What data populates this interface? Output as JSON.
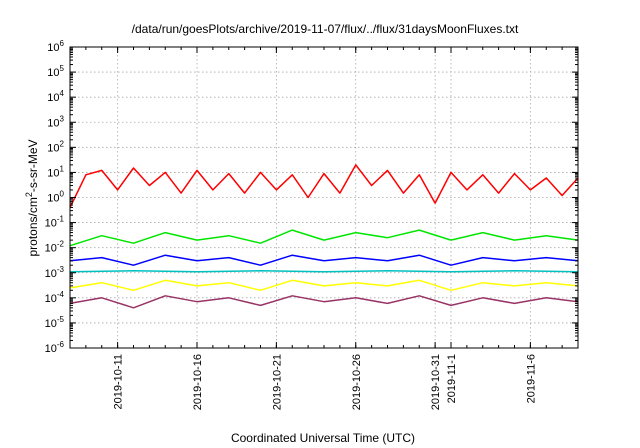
{
  "chart_data": {
    "type": "line",
    "title": "/data/run/goesPlots/archive/2019-11-07/flux/../flux/31daysMoonFluxes.txt",
    "xlabel": "Coordinated Universal Time (UTC)",
    "ylabel_parts": [
      "protons/cm",
      "2",
      "-s-sr-MeV"
    ],
    "x_range": [
      "2019-10-08",
      "2019-11-09"
    ],
    "ylim": [
      1e-06,
      1000000.0
    ],
    "y_scale": "log",
    "grid": true,
    "y_ticks": [
      {
        "base": "10",
        "exp": "-6",
        "value": 1e-06
      },
      {
        "base": "10",
        "exp": "-5",
        "value": 1e-05
      },
      {
        "base": "10",
        "exp": "-4",
        "value": 0.0001
      },
      {
        "base": "10",
        "exp": "-3",
        "value": 0.001
      },
      {
        "base": "10",
        "exp": "-2",
        "value": 0.01
      },
      {
        "base": "10",
        "exp": "-1",
        "value": 0.1
      },
      {
        "base": "10",
        "exp": "0",
        "value": 1
      },
      {
        "base": "10",
        "exp": "1",
        "value": 10
      },
      {
        "base": "10",
        "exp": "2",
        "value": 100
      },
      {
        "base": "10",
        "exp": "3",
        "value": 1000
      },
      {
        "base": "10",
        "exp": "4",
        "value": 10000
      },
      {
        "base": "10",
        "exp": "5",
        "value": 100000
      },
      {
        "base": "10",
        "exp": "6",
        "value": 1000000
      }
    ],
    "x_ticks": [
      {
        "date": "2019-10-11",
        "label": "2019-10-11"
      },
      {
        "date": "2019-10-16",
        "label": "2019-10-16"
      },
      {
        "date": "2019-10-21",
        "label": "2019-10-21"
      },
      {
        "date": "2019-10-26",
        "label": "2019-10-26"
      },
      {
        "date": "2019-10-31",
        "label": "2019-10-31"
      },
      {
        "date": "2019-11-01",
        "label": "2019-11-1"
      },
      {
        "date": "2019-11-06",
        "label": "2019-11-6"
      }
    ],
    "series": [
      {
        "color": "#ff0000",
        "x": [
          "2019-10-08",
          "2019-10-09",
          "2019-10-10",
          "2019-10-11",
          "2019-10-12",
          "2019-10-13",
          "2019-10-14",
          "2019-10-15",
          "2019-10-16",
          "2019-10-17",
          "2019-10-18",
          "2019-10-19",
          "2019-10-20",
          "2019-10-21",
          "2019-10-22",
          "2019-10-23",
          "2019-10-24",
          "2019-10-25",
          "2019-10-26",
          "2019-10-27",
          "2019-10-28",
          "2019-10-29",
          "2019-10-30",
          "2019-10-31",
          "2019-11-01",
          "2019-11-02",
          "2019-11-03",
          "2019-11-04",
          "2019-11-05",
          "2019-11-06",
          "2019-11-07",
          "2019-11-08",
          "2019-11-09"
        ],
        "values": [
          0.4,
          8,
          12,
          2,
          15,
          3,
          10,
          1.5,
          12,
          2,
          9,
          1.5,
          10,
          2,
          8,
          1,
          9,
          1.5,
          20,
          3,
          12,
          1.5,
          8,
          0.6,
          10,
          2,
          8,
          1.5,
          9,
          2,
          6,
          1.2,
          6
        ]
      },
      {
        "color": "#00e600",
        "x": [
          "2019-10-08",
          "2019-10-10",
          "2019-10-12",
          "2019-10-14",
          "2019-10-16",
          "2019-10-18",
          "2019-10-20",
          "2019-10-22",
          "2019-10-24",
          "2019-10-26",
          "2019-10-28",
          "2019-10-30",
          "2019-11-01",
          "2019-11-03",
          "2019-11-05",
          "2019-11-07",
          "2019-11-09"
        ],
        "values": [
          0.012,
          0.03,
          0.015,
          0.04,
          0.02,
          0.03,
          0.015,
          0.05,
          0.02,
          0.04,
          0.025,
          0.05,
          0.02,
          0.04,
          0.02,
          0.03,
          0.02
        ]
      },
      {
        "color": "#0000ff",
        "x": [
          "2019-10-08",
          "2019-10-10",
          "2019-10-12",
          "2019-10-14",
          "2019-10-16",
          "2019-10-18",
          "2019-10-20",
          "2019-10-22",
          "2019-10-24",
          "2019-10-26",
          "2019-10-28",
          "2019-10-30",
          "2019-11-01",
          "2019-11-03",
          "2019-11-05",
          "2019-11-07",
          "2019-11-09"
        ],
        "values": [
          0.003,
          0.004,
          0.002,
          0.005,
          0.003,
          0.004,
          0.002,
          0.005,
          0.003,
          0.004,
          0.003,
          0.005,
          0.002,
          0.004,
          0.003,
          0.004,
          0.003
        ]
      },
      {
        "color": "#00c0c0",
        "x": [
          "2019-10-08",
          "2019-10-12",
          "2019-10-16",
          "2019-10-20",
          "2019-10-24",
          "2019-10-28",
          "2019-11-01",
          "2019-11-05",
          "2019-11-09"
        ],
        "values": [
          0.0011,
          0.0012,
          0.0011,
          0.0012,
          0.0011,
          0.0012,
          0.0011,
          0.0012,
          0.0011
        ]
      },
      {
        "color": "#ffff00",
        "x": [
          "2019-10-08",
          "2019-10-10",
          "2019-10-12",
          "2019-10-14",
          "2019-10-16",
          "2019-10-18",
          "2019-10-20",
          "2019-10-22",
          "2019-10-24",
          "2019-10-26",
          "2019-10-28",
          "2019-10-30",
          "2019-11-01",
          "2019-11-03",
          "2019-11-05",
          "2019-11-07",
          "2019-11-09"
        ],
        "values": [
          0.00025,
          0.0004,
          0.0002,
          0.0005,
          0.0003,
          0.0004,
          0.0002,
          0.0005,
          0.0003,
          0.0004,
          0.0003,
          0.0005,
          0.0002,
          0.0004,
          0.0003,
          0.0004,
          0.0003
        ]
      },
      {
        "color": "#993366",
        "x": [
          "2019-10-08",
          "2019-10-10",
          "2019-10-12",
          "2019-10-14",
          "2019-10-16",
          "2019-10-18",
          "2019-10-20",
          "2019-10-22",
          "2019-10-24",
          "2019-10-26",
          "2019-10-28",
          "2019-10-30",
          "2019-11-01",
          "2019-11-03",
          "2019-11-05",
          "2019-11-07",
          "2019-11-09"
        ],
        "values": [
          6e-05,
          0.0001,
          4e-05,
          0.00012,
          7e-05,
          0.0001,
          5e-05,
          0.00012,
          7e-05,
          0.0001,
          6e-05,
          0.00012,
          5e-05,
          0.0001,
          6e-05,
          0.0001,
          7e-05
        ]
      }
    ]
  }
}
